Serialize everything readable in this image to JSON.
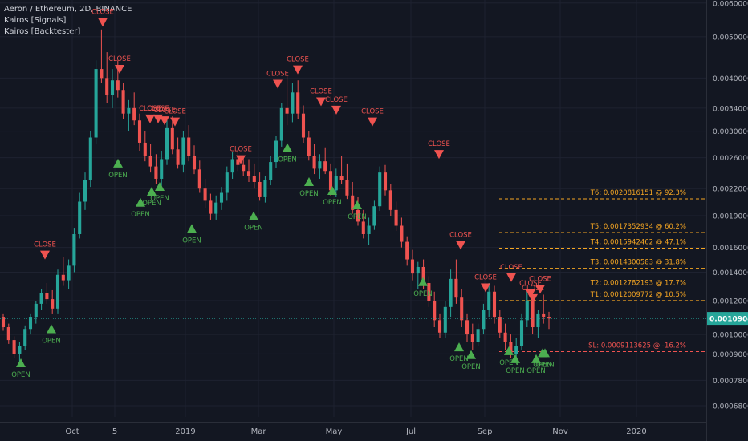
{
  "legend": {
    "title": "Aeron / Ethereum, 2D, BINANCE",
    "indicator1": "Kairos [Signals]",
    "indicator2": "Kairos [Backtester]"
  },
  "colors": {
    "background": "#131722",
    "grid": "#1e2230",
    "up": "#26a69a",
    "down": "#ef5350",
    "open_signal": "#4caf50",
    "close_signal": "#ef5350",
    "target": "#f5a623",
    "stop": "#ef5350",
    "axis_text": "#b2b5be",
    "price_badge": "#26a69a"
  },
  "chart_data": {
    "type": "candlestick",
    "symbol": "Aeron / Ethereum",
    "interval": "2D",
    "exchange": "BINANCE",
    "y_axis_scale": "log",
    "y_range": [
      0.00064,
      0.0061
    ],
    "y_ticks": [
      "0.00600000",
      "0.00500000",
      "0.00400000",
      "0.00340000",
      "0.00300000",
      "0.00260000",
      "0.00220000",
      "0.00190000",
      "0.00160000",
      "0.00140000",
      "0.00120000",
      "0.00100000",
      "0.00090000",
      "0.00078000",
      "0.00068000"
    ],
    "x_tick_labels": [
      "Oct",
      "5",
      "2019",
      "Mar",
      "May",
      "Jul",
      "Sep",
      "Nov",
      "2020"
    ],
    "last_price": "0.00109044",
    "targets": [
      {
        "label": "T6: 0.0020816151 @ 92.3%",
        "value": 0.0020816151
      },
      {
        "label": "T5: 0.0017352934 @ 60.2%",
        "value": 0.0017352934
      },
      {
        "label": "T4: 0.0015942462 @ 47.1%",
        "value": 0.0015942462
      },
      {
        "label": "T3: 0.0014300583 @ 31.8%",
        "value": 0.0014300583
      },
      {
        "label": "T2: 0.0012782193 @ 17.7%",
        "value": 0.0012782193
      },
      {
        "label": "T1: 0.0012009772 @ 10.5%",
        "value": 0.0012009772
      }
    ],
    "stop_loss": {
      "label": "SL: 0.0009113625 @ -16.2%",
      "value": 0.0009113625
    },
    "open_label": "OPEN",
    "close_label": "CLOSE",
    "open_signals": [
      0.00089,
      0.00107,
      0.00262,
      0.00212,
      0.00225,
      0.00231,
      0.00184,
      0.00197,
      0.00285,
      0.00237,
      0.00226,
      0.00209,
      0.00138,
      0.00097,
      0.00093,
      0.00095,
      0.00091,
      0.00091,
      0.00094,
      0.00094
    ],
    "close_signals": [
      0.00148,
      0.00521,
      0.00404,
      0.00309,
      0.00309,
      0.00306,
      0.00304,
      0.00248,
      0.00373,
      0.00403,
      0.00339,
      0.00324,
      0.00304,
      0.00255,
      0.00156,
      0.00124,
      0.00131,
      0.00117,
      0.00123,
      0.0012
    ],
    "ohlc": [
      [
        0.0011,
        0.00112,
        0.00102,
        0.00104
      ],
      [
        0.00104,
        0.00106,
        0.00095,
        0.00097
      ],
      [
        0.00097,
        0.00099,
        0.00088,
        0.0009
      ],
      [
        0.0009,
        0.00096,
        0.00086,
        0.00094
      ],
      [
        0.00094,
        0.00105,
        0.00092,
        0.00103
      ],
      [
        0.00103,
        0.00112,
        0.001,
        0.0011
      ],
      [
        0.0011,
        0.0012,
        0.00106,
        0.00118
      ],
      [
        0.00118,
        0.00128,
        0.00114,
        0.00125
      ],
      [
        0.00125,
        0.00132,
        0.00118,
        0.00121
      ],
      [
        0.00121,
        0.00127,
        0.00112,
        0.00115
      ],
      [
        0.00115,
        0.00142,
        0.00112,
        0.00138
      ],
      [
        0.00138,
        0.00152,
        0.0013,
        0.00134
      ],
      [
        0.00134,
        0.0015,
        0.00128,
        0.00145
      ],
      [
        0.00145,
        0.00178,
        0.0014,
        0.00172
      ],
      [
        0.00172,
        0.00215,
        0.00168,
        0.00205
      ],
      [
        0.00205,
        0.0024,
        0.00196,
        0.0023
      ],
      [
        0.0023,
        0.003,
        0.00222,
        0.0029
      ],
      [
        0.0029,
        0.0044,
        0.0028,
        0.0042
      ],
      [
        0.0042,
        0.0052,
        0.0039,
        0.004
      ],
      [
        0.004,
        0.0046,
        0.0035,
        0.00365
      ],
      [
        0.00365,
        0.0042,
        0.0034,
        0.00395
      ],
      [
        0.00395,
        0.0044,
        0.0036,
        0.00375
      ],
      [
        0.00375,
        0.0039,
        0.0032,
        0.0033
      ],
      [
        0.0033,
        0.00355,
        0.003,
        0.0034
      ],
      [
        0.0034,
        0.0037,
        0.0031,
        0.00318
      ],
      [
        0.00318,
        0.0033,
        0.0027,
        0.00282
      ],
      [
        0.00282,
        0.003,
        0.00255,
        0.00262
      ],
      [
        0.00262,
        0.0028,
        0.0024,
        0.00248
      ],
      [
        0.00248,
        0.00265,
        0.00225,
        0.00232
      ],
      [
        0.00232,
        0.0027,
        0.00222,
        0.00258
      ],
      [
        0.00258,
        0.0032,
        0.0025,
        0.00305
      ],
      [
        0.00305,
        0.00325,
        0.00265,
        0.00272
      ],
      [
        0.00272,
        0.0029,
        0.00245,
        0.0025
      ],
      [
        0.0025,
        0.003,
        0.0024,
        0.0029
      ],
      [
        0.0029,
        0.0031,
        0.00255,
        0.00262
      ],
      [
        0.00262,
        0.00278,
        0.00238,
        0.00244
      ],
      [
        0.00244,
        0.00256,
        0.00215,
        0.0022
      ],
      [
        0.0022,
        0.00232,
        0.00198,
        0.00206
      ],
      [
        0.00206,
        0.00214,
        0.00186,
        0.00192
      ],
      [
        0.00192,
        0.00212,
        0.00186,
        0.00204
      ],
      [
        0.00204,
        0.00222,
        0.00196,
        0.00215
      ],
      [
        0.00215,
        0.00248,
        0.00206,
        0.0024
      ],
      [
        0.0024,
        0.00268,
        0.00232,
        0.00258
      ],
      [
        0.00258,
        0.00272,
        0.00242,
        0.0025
      ],
      [
        0.0025,
        0.00262,
        0.00236,
        0.00242
      ],
      [
        0.00242,
        0.00258,
        0.00228,
        0.00236
      ],
      [
        0.00236,
        0.00252,
        0.0022,
        0.00228
      ],
      [
        0.00228,
        0.0024,
        0.00206,
        0.0021
      ],
      [
        0.0021,
        0.00236,
        0.00204,
        0.0023
      ],
      [
        0.0023,
        0.00262,
        0.00224,
        0.00254
      ],
      [
        0.00254,
        0.00292,
        0.00246,
        0.00285
      ],
      [
        0.00285,
        0.0035,
        0.00276,
        0.0034
      ],
      [
        0.0034,
        0.00405,
        0.0031,
        0.0033
      ],
      [
        0.0033,
        0.0039,
        0.00315,
        0.0037
      ],
      [
        0.0037,
        0.00395,
        0.0032,
        0.0033
      ],
      [
        0.0033,
        0.00345,
        0.00282,
        0.0029
      ],
      [
        0.0029,
        0.003,
        0.00256,
        0.00262
      ],
      [
        0.00262,
        0.0028,
        0.00238,
        0.00245
      ],
      [
        0.00245,
        0.00265,
        0.00232,
        0.00255
      ],
      [
        0.00255,
        0.00275,
        0.00238,
        0.00242
      ],
      [
        0.00242,
        0.00252,
        0.00212,
        0.00218
      ],
      [
        0.00218,
        0.00245,
        0.0021,
        0.00235
      ],
      [
        0.00235,
        0.00262,
        0.00225,
        0.0023
      ],
      [
        0.0023,
        0.00252,
        0.00208,
        0.00212
      ],
      [
        0.00212,
        0.00228,
        0.00192,
        0.00196
      ],
      [
        0.00196,
        0.0021,
        0.0018,
        0.00184
      ],
      [
        0.00184,
        0.00196,
        0.00168,
        0.00172
      ],
      [
        0.00172,
        0.00188,
        0.00162,
        0.0018
      ],
      [
        0.0018,
        0.00206,
        0.00176,
        0.002
      ],
      [
        0.002,
        0.00248,
        0.00195,
        0.0024
      ],
      [
        0.0024,
        0.0025,
        0.00212,
        0.00218
      ],
      [
        0.00218,
        0.00226,
        0.0019,
        0.00196
      ],
      [
        0.00196,
        0.00205,
        0.00175,
        0.0018
      ],
      [
        0.0018,
        0.00188,
        0.0016,
        0.00165
      ],
      [
        0.00165,
        0.0017,
        0.00145,
        0.0015
      ],
      [
        0.0015,
        0.00158,
        0.00134,
        0.00139
      ],
      [
        0.00139,
        0.00148,
        0.00128,
        0.00144
      ],
      [
        0.00144,
        0.0015,
        0.00128,
        0.00132
      ],
      [
        0.00132,
        0.00137,
        0.00116,
        0.0012
      ],
      [
        0.0012,
        0.00126,
        0.00104,
        0.00108
      ],
      [
        0.00108,
        0.00112,
        0.00098,
        0.00101
      ],
      [
        0.00101,
        0.0012,
        0.00098,
        0.00116
      ],
      [
        0.00116,
        0.00142,
        0.0011,
        0.00135
      ],
      [
        0.00135,
        0.0015,
        0.00118,
        0.00122
      ],
      [
        0.00122,
        0.00128,
        0.00104,
        0.00108
      ],
      [
        0.00108,
        0.00112,
        0.00096,
        0.001
      ],
      [
        0.001,
        0.00106,
        0.00092,
        0.00096
      ],
      [
        0.00096,
        0.00106,
        0.00094,
        0.00103
      ],
      [
        0.00103,
        0.00118,
        0.001,
        0.00114
      ],
      [
        0.00114,
        0.00132,
        0.0011,
        0.00126
      ],
      [
        0.00126,
        0.0013,
        0.00106,
        0.0011
      ],
      [
        0.0011,
        0.00114,
        0.00098,
        0.00101
      ],
      [
        0.00101,
        0.00106,
        0.00092,
        0.00096
      ],
      [
        0.00096,
        0.001,
        0.00088,
        0.0009
      ],
      [
        0.0009,
        0.00098,
        0.00086,
        0.00094
      ],
      [
        0.00094,
        0.00112,
        0.00092,
        0.00108
      ],
      [
        0.00108,
        0.00128,
        0.00104,
        0.0012
      ],
      [
        0.0012,
        0.00126,
        0.001,
        0.00104
      ],
      [
        0.00104,
        0.00114,
        0.00098,
        0.00112
      ],
      [
        0.00112,
        0.00124,
        0.00106,
        0.0011
      ],
      [
        0.0011,
        0.00113,
        0.00103,
        0.00109
      ]
    ]
  }
}
